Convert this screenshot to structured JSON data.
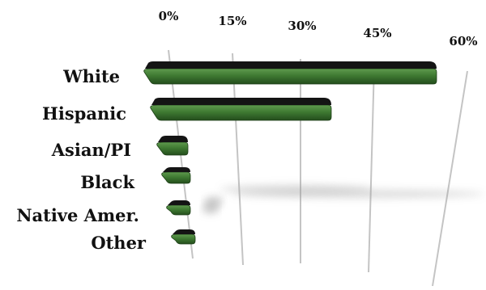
{
  "chart_data": {
    "type": "bar",
    "orientation": "horizontal",
    "title": "",
    "xlabel": "",
    "ylabel": "",
    "categories": [
      "White",
      "Hispanic",
      "Asian/PI",
      "Black",
      "Native Amer.",
      "Other"
    ],
    "values": [
      58,
      35,
      3,
      3,
      1,
      2
    ],
    "x_ticks": [
      "0%",
      "15%",
      "30%",
      "45%",
      "60%"
    ],
    "xlim": [
      0,
      60
    ],
    "grid": true,
    "legend": "none",
    "bar_color": "#3f7a32",
    "bar_top_color": "#141414"
  }
}
